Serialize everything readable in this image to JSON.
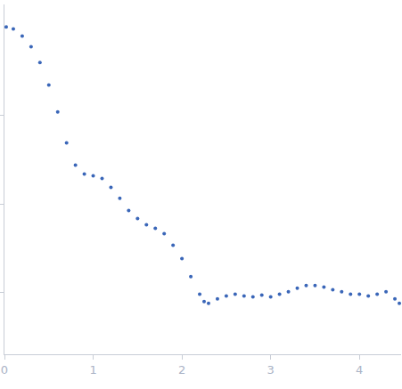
{
  "chart_data": {
    "type": "scatter",
    "log": "y",
    "tick_labels": "x",
    "grid": false,
    "color": "#3a66b8",
    "marker": "circle",
    "x": [
      0.02,
      0.1,
      0.2,
      0.3,
      0.4,
      0.5,
      0.6,
      0.7,
      0.8,
      0.9,
      1.0,
      1.1,
      1.2,
      1.3,
      1.4,
      1.5,
      1.6,
      1.7,
      1.8,
      1.9,
      2.0,
      2.1,
      2.2,
      2.25,
      2.3,
      2.4,
      2.5,
      2.6,
      2.7,
      2.8,
      2.9,
      3.0,
      3.1,
      3.2,
      3.3,
      3.4,
      3.5,
      3.6,
      3.7,
      3.8,
      3.9,
      4.0,
      4.1,
      4.2,
      4.3,
      4.4,
      4.45
    ],
    "values": [
      1.0,
      0.954,
      0.793,
      0.6,
      0.396,
      0.221,
      0.11,
      0.0491,
      0.0275,
      0.0218,
      0.0208,
      0.0194,
      0.0154,
      0.0116,
      0.00842,
      0.00684,
      0.00581,
      0.0053,
      0.00461,
      0.00341,
      0.00241,
      0.00151,
      0.000953,
      0.000791,
      0.000755,
      0.000848,
      0.00091,
      0.000953,
      0.00091,
      0.000889,
      0.000931,
      0.000889,
      0.000953,
      0.00102,
      0.00112,
      0.0012,
      0.0012,
      0.00115,
      0.00107,
      0.00102,
      0.000953,
      0.000953,
      0.00091,
      0.000953,
      0.00102,
      0.000848,
      0.000755
    ],
    "xlim": [
      0,
      4.47
    ],
    "xticks": [
      0,
      1,
      2,
      3,
      4
    ],
    "ylim": [
      0.0002,
      1.8
    ],
    "yticks": [
      0.001,
      0.01,
      0.1
    ]
  }
}
